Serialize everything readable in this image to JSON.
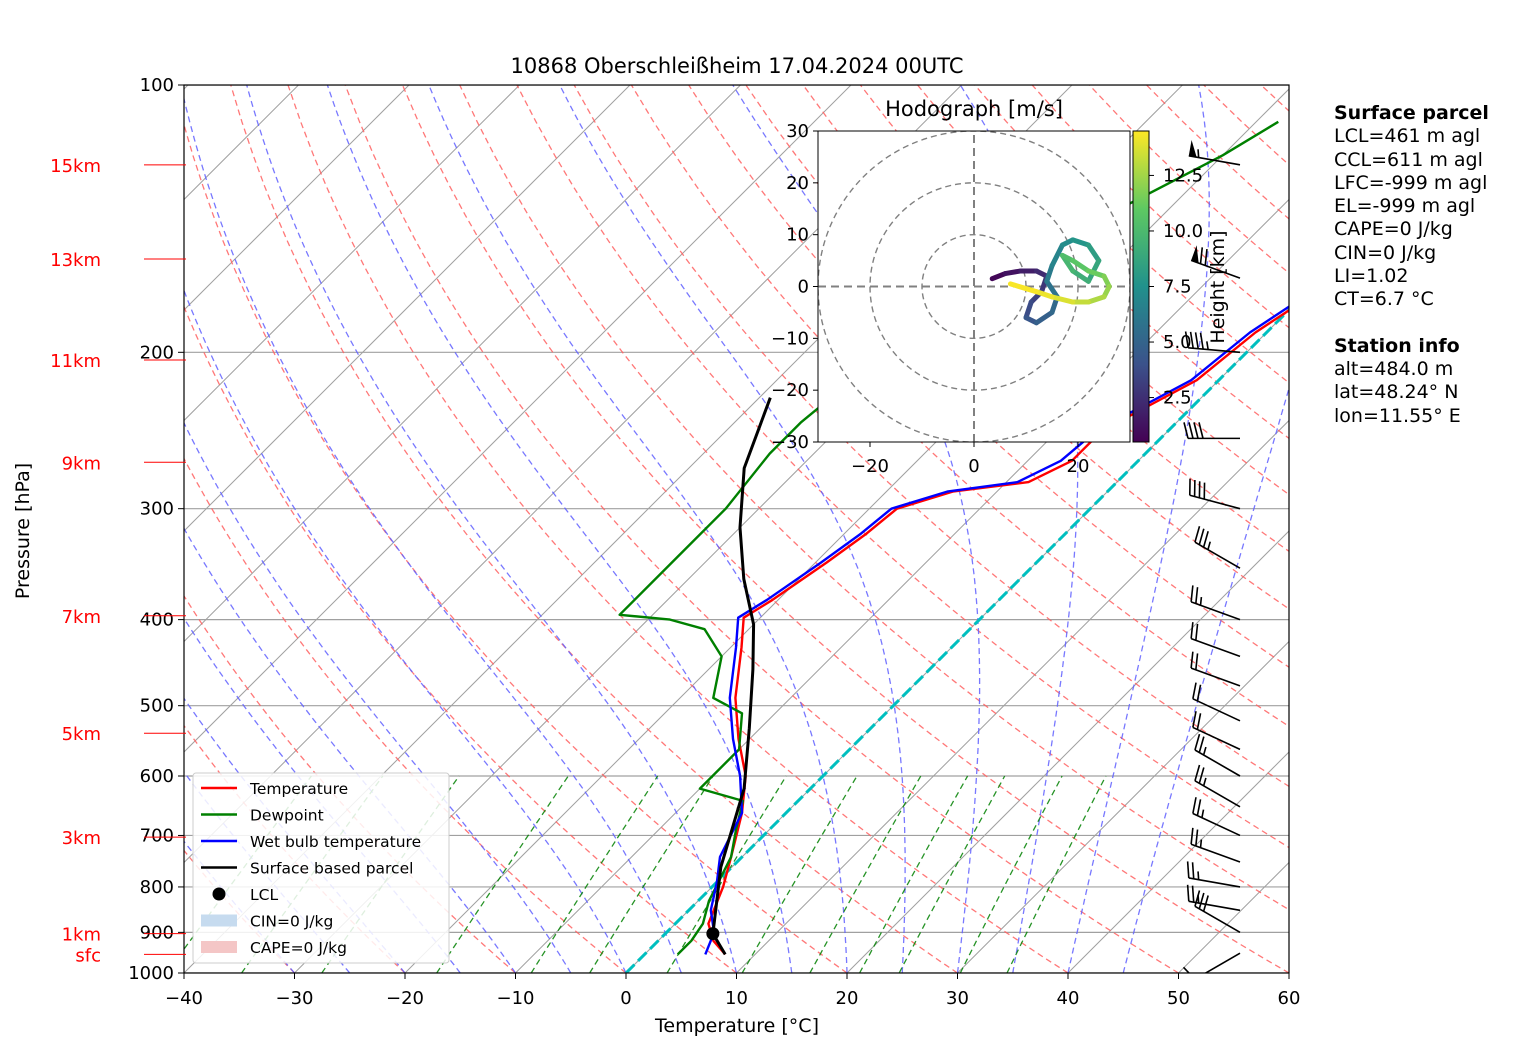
{
  "chart_data": {
    "type": "skew-t log-p sounding",
    "title": "10868 Oberschleißheim 17.04.2024 00UTC",
    "xlabel": "Temperature [°C]",
    "ylabel": "Pressure [hPa]",
    "xlim": [
      -40,
      60
    ],
    "ylim": [
      1000,
      100
    ],
    "y_scale": "log",
    "grid": true,
    "x_ticks": [
      "−40",
      "−30",
      "−20",
      "−10",
      "0",
      "10",
      "20",
      "30",
      "40",
      "50",
      "60"
    ],
    "pressure_ticks": [
      {
        "p": 100,
        "label": "100"
      },
      {
        "p": 200,
        "label": "200"
      },
      {
        "p": 300,
        "label": "300"
      },
      {
        "p": 400,
        "label": "400"
      },
      {
        "p": 500,
        "label": "500"
      },
      {
        "p": 600,
        "label": "600"
      },
      {
        "p": 700,
        "label": "700"
      },
      {
        "p": 800,
        "label": "800"
      },
      {
        "p": 900,
        "label": "900"
      },
      {
        "p": 1000,
        "label": "1000"
      }
    ],
    "height_ticks": [
      {
        "label": "15km",
        "p": 123
      },
      {
        "label": "13km",
        "p": 157
      },
      {
        "label": "11km",
        "p": 204
      },
      {
        "label": "9km",
        "p": 266
      },
      {
        "label": "7km",
        "p": 396
      },
      {
        "label": "5km",
        "p": 537
      },
      {
        "label": "3km",
        "p": 703
      },
      {
        "label": "1km",
        "p": 903
      },
      {
        "label": "sfc",
        "p": 953
      }
    ],
    "series": [
      {
        "name": "Temperature",
        "color": "#ff0000",
        "points": [
          [
            7.3,
            953
          ],
          [
            5,
            920
          ],
          [
            3,
            880
          ],
          [
            1,
            800
          ],
          [
            -1,
            740
          ],
          [
            -4,
            660
          ],
          [
            -7,
            600
          ],
          [
            -11,
            545
          ],
          [
            -15,
            490
          ],
          [
            -19,
            430
          ],
          [
            -21.5,
            398
          ],
          [
            -20.5,
            380
          ],
          [
            -19,
            345
          ],
          [
            -18,
            320
          ],
          [
            -17.5,
            300
          ],
          [
            -14,
            287
          ],
          [
            -8,
            280
          ],
          [
            -6,
            265
          ],
          [
            -6,
            245
          ],
          [
            -2,
            215
          ],
          [
            -1,
            190
          ],
          [
            1,
            170
          ],
          [
            3,
            155
          ],
          [
            7,
            138
          ],
          [
            9,
            128
          ],
          [
            14,
            123
          ],
          [
            16,
            118
          ]
        ]
      },
      {
        "name": "Dewpoint",
        "color": "#008000",
        "points": [
          [
            3,
            953
          ],
          [
            3,
            920
          ],
          [
            2.5,
            880
          ],
          [
            1,
            830
          ],
          [
            -1,
            740
          ],
          [
            -3,
            690
          ],
          [
            -5,
            640
          ],
          [
            -10,
            620
          ],
          [
            -10,
            560
          ],
          [
            -13,
            510
          ],
          [
            -17,
            490
          ],
          [
            -20,
            440
          ],
          [
            -24,
            410
          ],
          [
            -28,
            400
          ],
          [
            -33,
            395
          ],
          [
            -33,
            340
          ],
          [
            -33,
            300
          ],
          [
            -34,
            260
          ],
          [
            -34,
            240
          ],
          [
            -33,
            210
          ],
          [
            -31,
            180
          ],
          [
            -30,
            160
          ],
          [
            -25,
            140
          ],
          [
            -20,
            120
          ],
          [
            -18,
            110
          ]
        ]
      },
      {
        "name": "Wet bulb temperature",
        "color": "#0000ff",
        "points": [
          [
            5.5,
            953
          ],
          [
            4.3,
            900
          ],
          [
            2,
            850
          ],
          [
            0,
            790
          ],
          [
            -2,
            740
          ],
          [
            -4,
            660
          ],
          [
            -7.5,
            600
          ],
          [
            -11.5,
            545
          ],
          [
            -15.5,
            490
          ],
          [
            -19.5,
            430
          ],
          [
            -22,
            398
          ],
          [
            -21,
            380
          ],
          [
            -19.5,
            345
          ],
          [
            -18.5,
            320
          ],
          [
            -18,
            300
          ],
          [
            -14.5,
            287
          ],
          [
            -9,
            280
          ],
          [
            -7,
            265
          ],
          [
            -6.5,
            245
          ],
          [
            -2.5,
            215
          ],
          [
            -1.5,
            190
          ],
          [
            0.5,
            170
          ],
          [
            2.5,
            155
          ],
          [
            6,
            138
          ],
          [
            8,
            128
          ],
          [
            13,
            123
          ],
          [
            15,
            118
          ]
        ]
      },
      {
        "name": "Surface based parcel",
        "color": "#000000",
        "points": [
          [
            7.3,
            953
          ],
          [
            4.3,
            903
          ],
          [
            -1,
            760
          ],
          [
            -6,
            620
          ],
          [
            -11,
            530
          ],
          [
            -16,
            455
          ],
          [
            -20,
            405
          ],
          [
            -25,
            360
          ],
          [
            -30,
            315
          ],
          [
            -35,
            270
          ],
          [
            -39,
            225
          ]
        ]
      }
    ],
    "lcl": {
      "label": "LCL",
      "t": 4.3,
      "p": 903
    },
    "legend": {
      "placement": "lower-left",
      "entries": [
        {
          "label": "Temperature",
          "kind": "line",
          "color": "#ff0000"
        },
        {
          "label": "Dewpoint",
          "kind": "line",
          "color": "#008000"
        },
        {
          "label": "Wet bulb temperature",
          "kind": "line",
          "color": "#0000ff"
        },
        {
          "label": "Surface based parcel",
          "kind": "line",
          "color": "#000000"
        },
        {
          "label": "LCL",
          "kind": "dot",
          "color": "#000000"
        },
        {
          "label": "CIN=0 J/kg",
          "kind": "patch",
          "color": "#c6dbef"
        },
        {
          "label": "CAPE=0 J/kg",
          "kind": "patch",
          "color": "#f4c6c6"
        }
      ]
    },
    "hodograph": {
      "title": "Hodograph [m/s]",
      "xlim": [
        -30,
        30
      ],
      "ylim": [
        -30,
        30
      ],
      "x_ticks": [
        "−20",
        "0",
        "20"
      ],
      "y_ticks": [
        "30",
        "20",
        "10",
        "0",
        "−10",
        "−20",
        "−30"
      ],
      "rings": [
        10,
        20,
        30
      ],
      "colorbar": {
        "label": "Height [km]",
        "ticks": [
          "2.5",
          "5.0",
          "7.5",
          "10.0",
          "12.5"
        ],
        "range": [
          0.5,
          14.5
        ]
      },
      "points": [
        [
          3.5,
          1.5,
          0.5
        ],
        [
          6,
          2.5,
          1
        ],
        [
          9,
          3,
          1.5
        ],
        [
          12,
          3,
          2
        ],
        [
          14,
          2,
          2.5
        ],
        [
          13,
          -1,
          3
        ],
        [
          11,
          -3,
          3.5
        ],
        [
          10,
          -6,
          4
        ],
        [
          12,
          -7,
          4.5
        ],
        [
          15,
          -5,
          5
        ],
        [
          16,
          -2,
          5.5
        ],
        [
          14,
          1,
          6
        ],
        [
          15,
          4,
          6.5
        ],
        [
          17,
          8,
          7
        ],
        [
          19,
          9,
          7.5
        ],
        [
          22,
          8,
          8
        ],
        [
          24,
          5,
          8.5
        ],
        [
          22,
          1,
          9
        ],
        [
          19,
          3,
          9.5
        ],
        [
          17,
          6,
          10
        ],
        [
          19,
          5,
          10.5
        ],
        [
          22,
          3,
          11
        ],
        [
          25,
          2,
          11.5
        ],
        [
          26,
          0,
          12
        ],
        [
          25,
          -2,
          12.5
        ],
        [
          22,
          -3,
          13
        ],
        [
          19,
          -3,
          13.5
        ],
        [
          15,
          -2,
          14
        ],
        [
          12,
          -1,
          14.3
        ],
        [
          7,
          0.5,
          14.5
        ]
      ]
    }
  },
  "info": {
    "surface_header": "Surface parcel",
    "surface_lines": [
      "LCL=461 m agl",
      "CCL=611 m agl",
      "LFC=-999 m agl",
      "EL=-999 m agl",
      "CAPE=0 J/kg",
      "CIN=0 J/kg",
      "LI=1.02",
      "CT=6.7 °C"
    ],
    "station_header": "Station info",
    "station_lines": [
      "alt=484.0 m",
      "lat=48.24° N",
      "lon=11.55° E"
    ]
  },
  "wind_barbs": [
    {
      "p": 123,
      "dir": 280,
      "kt": 55
    },
    {
      "p": 165,
      "dir": 290,
      "kt": 70
    },
    {
      "p": 200,
      "dir": 275,
      "kt": 45
    },
    {
      "p": 250,
      "dir": 270,
      "kt": 40
    },
    {
      "p": 300,
      "dir": 285,
      "kt": 40
    },
    {
      "p": 350,
      "dir": 300,
      "kt": 35
    },
    {
      "p": 400,
      "dir": 290,
      "kt": 25
    },
    {
      "p": 440,
      "dir": 290,
      "kt": 20
    },
    {
      "p": 475,
      "dir": 290,
      "kt": 20
    },
    {
      "p": 520,
      "dir": 295,
      "kt": 20
    },
    {
      "p": 560,
      "dir": 295,
      "kt": 20
    },
    {
      "p": 600,
      "dir": 300,
      "kt": 25
    },
    {
      "p": 650,
      "dir": 300,
      "kt": 25
    },
    {
      "p": 700,
      "dir": 295,
      "kt": 25
    },
    {
      "p": 750,
      "dir": 290,
      "kt": 25
    },
    {
      "p": 800,
      "dir": 280,
      "kt": 25
    },
    {
      "p": 850,
      "dir": 280,
      "kt": 25
    },
    {
      "p": 900,
      "dir": 300,
      "kt": 30
    },
    {
      "p": 950,
      "dir": 240,
      "kt": 10
    }
  ],
  "colors": {
    "dry_adiabat": "#ff6060",
    "moist_adiabat": "#6060ff",
    "mixing_ratio": "#008000",
    "isotherm": "#a0a0a0",
    "freezing_isotherm": "#00bfbf",
    "height_labels": "#ff0000"
  }
}
